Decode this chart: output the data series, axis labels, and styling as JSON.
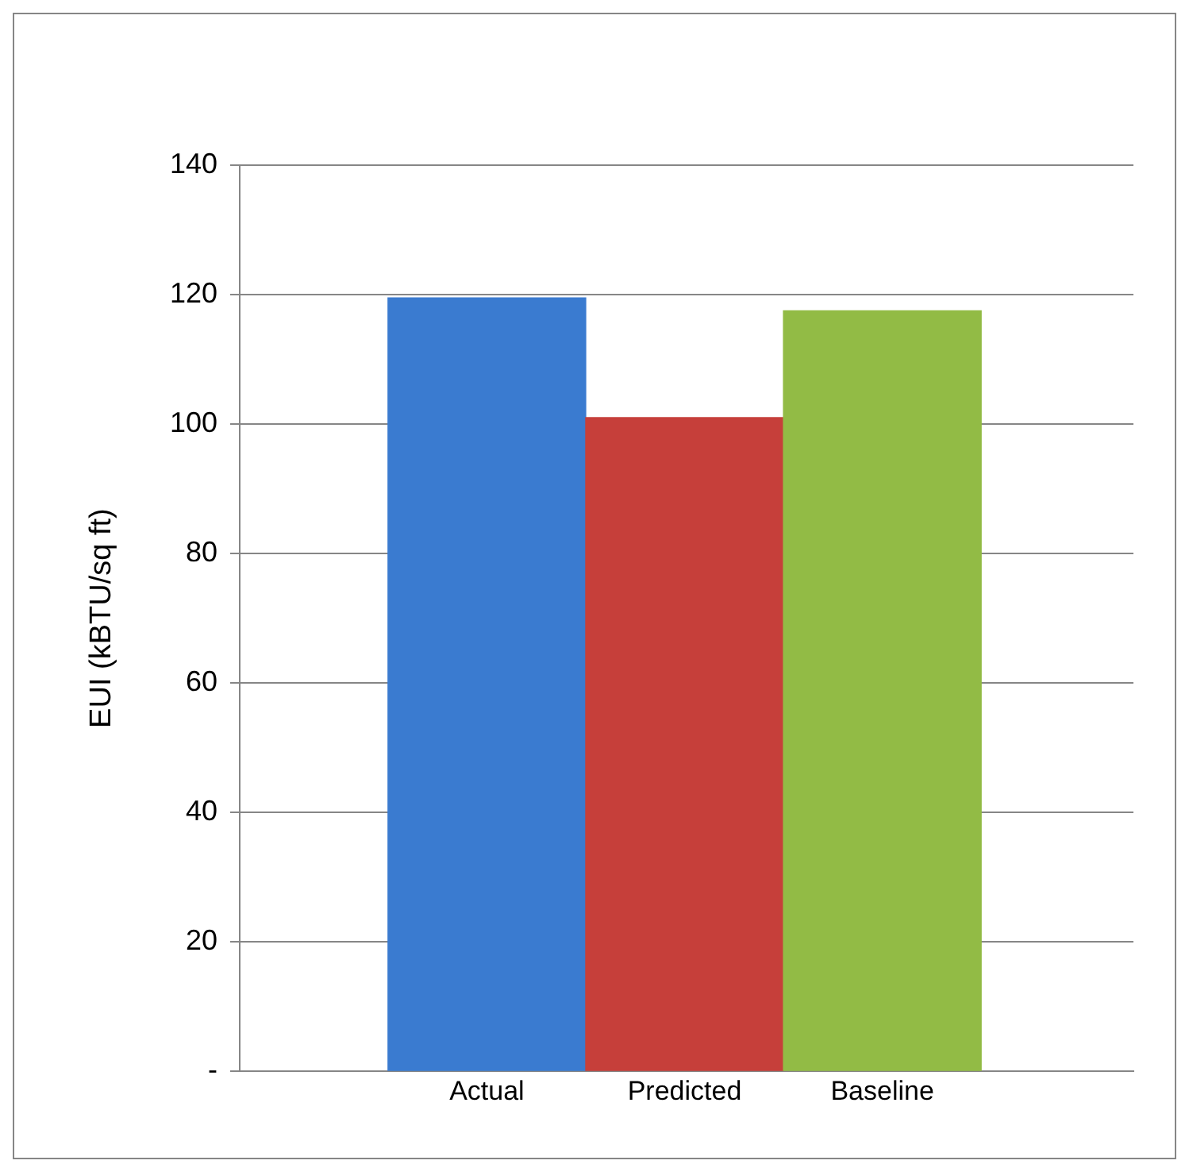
{
  "chart_data": {
    "type": "bar",
    "ylabel": "EUI (kBTU/sq ft)",
    "categories": [
      "Actual",
      "Predicted",
      "Baseline"
    ],
    "values": [
      119.5,
      101,
      117.5
    ],
    "colors": [
      "#3a7bd0",
      "#c63f3a",
      "#92bb45"
    ],
    "ylim": [
      0,
      140
    ],
    "yticks": [
      {
        "value": 0,
        "label": "-"
      },
      20,
      40,
      60,
      80,
      100,
      120,
      140
    ],
    "grid": "y",
    "legend": false
  }
}
